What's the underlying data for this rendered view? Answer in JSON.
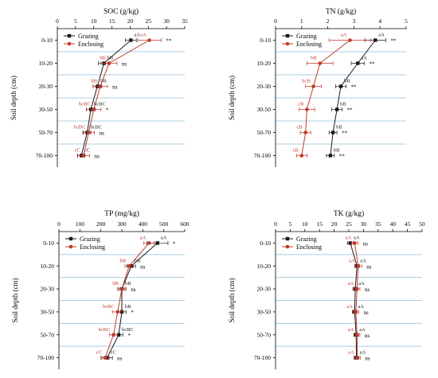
{
  "colors": {
    "grazing": "#1a1a1a",
    "enclosing": "#c0392b",
    "band": "#a8cfe3",
    "axis": "#000000"
  },
  "chart_data": [
    {
      "type": "line",
      "title": "SOC (g/kg)",
      "xlabel": "",
      "ylabel": "Soil depth (cm)",
      "xlim": [
        0,
        35
      ],
      "xticks": [
        "0",
        "5",
        "10",
        "15",
        "20",
        "25",
        "30",
        "35"
      ],
      "categories": [
        "0-10",
        "10-20",
        "20-30",
        "30-50",
        "50-70",
        "70-100"
      ],
      "legend": "top-left",
      "series": [
        {
          "name": "Grazing",
          "values": [
            20.2,
            12.8,
            11.0,
            9.2,
            8.2,
            6.6
          ],
          "err": [
            1.5,
            1.5,
            1.2,
            1.2,
            1.0,
            1.0
          ],
          "labels": [
            "aA",
            "bB",
            "bB",
            "bcBC",
            "bcBC",
            "cC"
          ]
        },
        {
          "name": "Enclosing",
          "values": [
            25.3,
            14.2,
            11.8,
            10.0,
            8.6,
            7.2
          ],
          "err": [
            3.2,
            2.2,
            2.0,
            2.0,
            1.6,
            1.7
          ],
          "labels": [
            "aA",
            "bB",
            "bB",
            "bcBC",
            "bcBC",
            "cC"
          ]
        }
      ],
      "significance": [
        "**",
        "ns",
        "ns",
        "*",
        "ns",
        "ns"
      ]
    },
    {
      "type": "line",
      "title": "TN (g/kg)",
      "xlabel": "",
      "ylabel": "Soil depth (cm)",
      "xlim": [
        0,
        5
      ],
      "xticks": [
        "0",
        "1",
        "2",
        "3",
        "4",
        "5"
      ],
      "categories": [
        "0-10",
        "10-20",
        "20-30",
        "30-50",
        "50-70",
        "70-100"
      ],
      "legend": "top-left",
      "series": [
        {
          "name": "Grazing",
          "values": [
            3.82,
            3.15,
            2.5,
            2.35,
            2.2,
            2.1
          ],
          "err": [
            0.4,
            0.25,
            0.2,
            0.2,
            0.15,
            0.15
          ],
          "labels": [
            "aA",
            "aA",
            "bB",
            "bB",
            "bB",
            "bB"
          ]
        },
        {
          "name": "Enclosing",
          "values": [
            2.85,
            1.7,
            1.45,
            1.2,
            1.15,
            1.0
          ],
          "err": [
            0.8,
            0.5,
            0.3,
            0.3,
            0.2,
            0.2
          ],
          "labels": [
            "aA",
            "bB",
            "bcB",
            "cB",
            "cB",
            "cB"
          ]
        }
      ],
      "significance": [
        "**",
        "**",
        "**",
        "**",
        "**",
        "**"
      ]
    },
    {
      "type": "line",
      "title": "TP (mg/kg)",
      "xlabel": "",
      "ylabel": "Soil depth (cm)",
      "xlim": [
        0,
        600
      ],
      "xticks": [
        "0",
        "100",
        "200",
        "300",
        "400",
        "500",
        "600"
      ],
      "categories": [
        "0-10",
        "10-20",
        "20-30",
        "30-50",
        "50-70",
        "70-100"
      ],
      "legend": "top-left",
      "series": [
        {
          "name": "Grazing",
          "values": [
            470,
            345,
            300,
            300,
            285,
            230
          ],
          "err": [
            50,
            20,
            15,
            20,
            20,
            25
          ],
          "labels": [
            "aA",
            "bB",
            "bB",
            "bB",
            "bcBC",
            "cC"
          ]
        },
        {
          "name": "Enclosing",
          "values": [
            430,
            335,
            300,
            280,
            260,
            220
          ],
          "err": [
            25,
            20,
            20,
            25,
            20,
            20
          ],
          "labels": [
            "aA",
            "bB",
            "bB",
            "bcBC",
            "bcBC",
            "cC"
          ]
        }
      ],
      "significance": [
        "*",
        "ns",
        "ns",
        "*",
        "*",
        "ns"
      ]
    },
    {
      "type": "line",
      "title": "TK (g/kg)",
      "xlabel": "",
      "ylabel": "Soil depth (cm)",
      "xlim": [
        0,
        50
      ],
      "xticks": [
        "0",
        "5",
        "10",
        "15",
        "20",
        "25",
        "30",
        "35",
        "40",
        "45",
        "50"
      ],
      "categories": [
        "0-10",
        "10-20",
        "20-30",
        "30-50",
        "50-70",
        "70-100"
      ],
      "legend": "top-left",
      "series": [
        {
          "name": "Grazing",
          "values": [
            25.5,
            27.8,
            27.2,
            27.0,
            27.5,
            27.6
          ],
          "err": [
            1.0,
            0.8,
            0.8,
            0.8,
            0.8,
            0.8
          ],
          "labels": [
            "aA",
            "aA",
            "aA",
            "aA",
            "aA",
            "aA"
          ]
        },
        {
          "name": "Enclosing",
          "values": [
            27.0,
            28.2,
            27.8,
            27.4,
            27.8,
            27.9
          ],
          "err": [
            1.2,
            1.2,
            1.0,
            1.0,
            1.0,
            1.0
          ],
          "labels": [
            "aA",
            "aA",
            "aA",
            "aA",
            "aA",
            "aA"
          ]
        }
      ],
      "significance": [
        "ns",
        "ns",
        "ns",
        "ns",
        "ns",
        "ns"
      ]
    }
  ]
}
